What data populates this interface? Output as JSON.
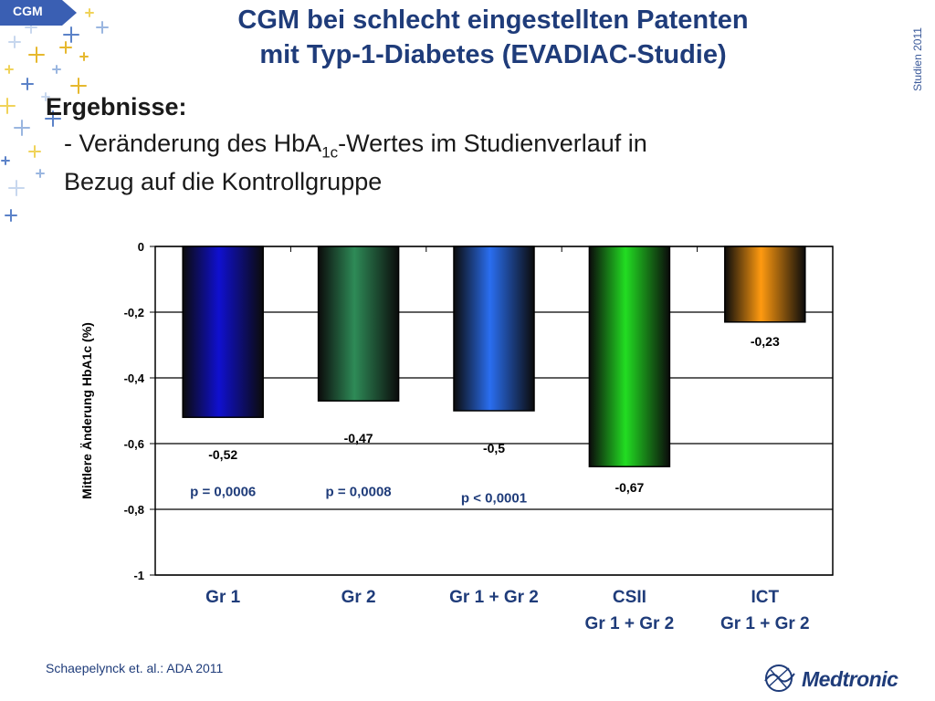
{
  "tag": "CGM",
  "title_line1": "CGM bei schlecht eingestellten Patenten",
  "title_line2": "mit Typ-1-Diabetes (EVADIAC-Studie)",
  "side_label": "Studien 2011",
  "results": {
    "heading": "Ergebnisse:",
    "line1_pre": "- Veränderung des HbA",
    "line1_sub": "1c",
    "line1_post": "-Wertes im Studienverlauf in",
    "line2": "Bezug auf die Kontrollgruppe"
  },
  "citation": "Schaepelynck et. al.:  ADA 2011",
  "logo_text": "Medtronic",
  "colors": {
    "title": "#1f3c7a",
    "tag": "#3a5fb3"
  },
  "chart_data": {
    "type": "bar",
    "ylabel": "Mittlere Änderung HbA1c (%)",
    "ylim": [
      -1,
      0
    ],
    "yticks": [
      0,
      -0.2,
      -0.4,
      -0.6,
      -0.8,
      -1
    ],
    "ytick_labels": [
      "0",
      "-0,2",
      "-0,4",
      "-0,6",
      "-0,8",
      "-1"
    ],
    "grid": true,
    "categories": [
      [
        "Gr 1"
      ],
      [
        "Gr 2"
      ],
      [
        "Gr 1 + Gr 2"
      ],
      [
        "CSII",
        "Gr 1 + Gr 2"
      ],
      [
        "ICT",
        "Gr 1 + Gr 2"
      ]
    ],
    "values": [
      -0.52,
      -0.47,
      -0.5,
      -0.67,
      -0.23
    ],
    "value_labels": [
      "-0,52",
      "-0,47",
      "-0,5",
      "-0,67",
      "-0,23"
    ],
    "annotations": [
      "p = 0,0006",
      "p = 0,0008",
      "p < 0,0001",
      "",
      ""
    ],
    "colors": [
      "#1010d0",
      "#2e8b57",
      "#2a6ef0",
      "#22dd22",
      "#ff9a10"
    ]
  }
}
